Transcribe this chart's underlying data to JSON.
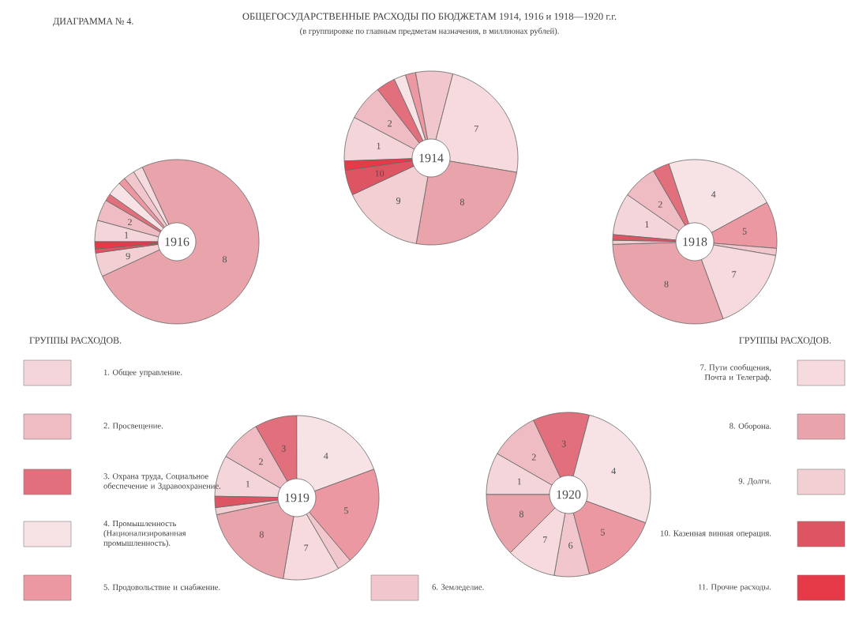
{
  "chart_data": [
    {
      "type": "donut",
      "title": "1914",
      "categories": [
        "1",
        "2",
        null,
        null,
        null,
        null,
        "7",
        "8",
        "9",
        "10",
        null
      ],
      "values": [
        8.3,
        6.7,
        3.6,
        2.2,
        1.9,
        6.9,
        23.6,
        25.1,
        15.3,
        4.7,
        1.7
      ],
      "colors": [
        "#f4d6da",
        "#efbcc3",
        "#e2707c",
        "#f7e3e5",
        "#ec98a2",
        "#f1c6cc",
        "#f6dadd",
        "#e9a3ab",
        "#f2cfd3",
        "#dd5562",
        "#e63a48"
      ]
    },
    {
      "type": "donut",
      "title": "1916",
      "categories": [
        "1",
        "2",
        null,
        null,
        null,
        null,
        null,
        "8",
        "9",
        null,
        null
      ],
      "values": [
        4.2,
        4.2,
        1.4,
        2.8,
        1.4,
        2.2,
        1.9,
        75.0,
        4.7,
        0.8,
        1.4
      ],
      "colors": [
        "#f4d6da",
        "#efbcc3",
        "#e2707c",
        "#f7e3e5",
        "#ec98a2",
        "#f1c6cc",
        "#f6dadd",
        "#e9a3ab",
        "#f2cfd3",
        "#dd5562",
        "#e63a48"
      ]
    },
    {
      "type": "donut",
      "title": "1918",
      "categories": [
        "1",
        "2",
        null,
        "4",
        "5",
        null,
        "7",
        "8",
        null,
        null
      ],
      "values": [
        8.3,
        6.9,
        3.3,
        22.2,
        9.2,
        1.4,
        16.7,
        30.1,
        0.8,
        1.1
      ],
      "colors": [
        "#f4d6da",
        "#efbcc3",
        "#e2707c",
        "#f7e3e5",
        "#ec98a2",
        "#f1c6cc",
        "#f6dadd",
        "#e9a3ab",
        "#f2cfd3",
        "#dd5562"
      ]
    },
    {
      "type": "donut",
      "title": "1919",
      "categories": [
        "1",
        "2",
        "3",
        "4",
        "5",
        null,
        "7",
        "8",
        null,
        null
      ],
      "values": [
        8.1,
        8.3,
        8.3,
        19.4,
        19.4,
        2.8,
        11.1,
        19.0,
        1.4,
        2.2
      ],
      "colors": [
        "#f4d6da",
        "#efbcc3",
        "#e2707c",
        "#f7e3e5",
        "#ec98a2",
        "#f1c6cc",
        "#f6dadd",
        "#e9a3ab",
        "#f2cfd3",
        "#dd5562"
      ]
    },
    {
      "type": "donut",
      "title": "1920",
      "categories": [
        "1",
        "2",
        "3",
        "4",
        "5",
        "6",
        "7",
        "8"
      ],
      "values": [
        8.3,
        9.7,
        11.1,
        26.5,
        15.3,
        6.9,
        9.7,
        12.5
      ],
      "colors": [
        "#f4d6da",
        "#efbcc3",
        "#e2707c",
        "#f7e3e5",
        "#ec98a2",
        "#f1c6cc",
        "#f6dadd",
        "#e9a3ab"
      ]
    },
    {
      "type": "other",
      "title": "ОБЩЕГОСУДАРСТВЕННЫЕ РАСХОДЫ ПО БЮДЖЕТАМ 1914, 1916 и 1918—1920 г.г.",
      "subtitle": "(в группировке по главным предметам назначения, в миллионах рублей).",
      "annotations": [
        "ДИАГРАММА № 4.",
        "ГРУППЫ РАСХОДОВ.",
        "ГРУППЫ РАСХОДОВ.",
        "1.",
        "2.",
        "3.",
        "4.",
        "5.",
        "6.",
        "7.",
        "8.",
        "9.",
        "10.",
        "11."
      ],
      "categories": [
        "Общее управление.",
        "Просвещение.",
        "Охрана труда, Социальное обеспечение и Здравоохранение.",
        "Промышленность (Национализированная промышленность).",
        "Продовольствие и снабжение.",
        "Земледелие.",
        "Пути сообщения, Почта и Телеграф.",
        "Оборона.",
        "Долги.",
        "Казенная винная операция.",
        "Прочие расходы."
      ],
      "colors": [
        "#f4d6da",
        "#efbcc3",
        "#e2707c",
        "#f7e3e5",
        "#ec98a2",
        "#f1c6cc",
        "#f6dadd",
        "#e9a3ab",
        "#f2cfd3",
        "#dd5562",
        "#e63a48"
      ]
    }
  ]
}
